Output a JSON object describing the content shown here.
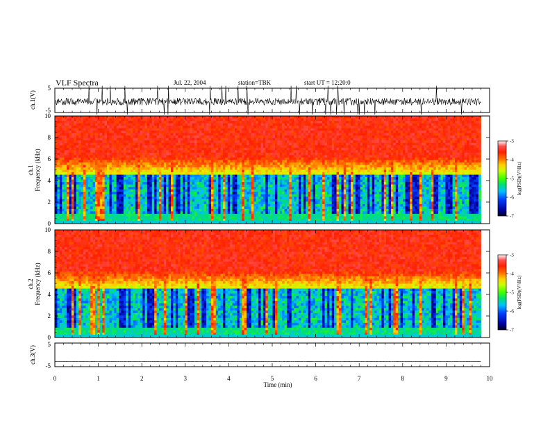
{
  "chart_data": {
    "type": "heatmap",
    "title": "VLF Spectra",
    "date": "Jul. 22, 2004",
    "station": "station=TBK",
    "start_ut": "start UT =  12:20:0",
    "xlabel": "Time (min)",
    "xlim": [
      0,
      10
    ],
    "x_ticks": [
      "0",
      "1",
      "2",
      "3",
      "4",
      "5",
      "6",
      "7",
      "8",
      "9",
      "10"
    ],
    "data_end_min": 9.8,
    "panels": [
      {
        "id": "ch1-waveform",
        "type": "line",
        "ylabel": "ch.1(V)",
        "ylim": [
          -5,
          5
        ],
        "y_ticks": [
          "5",
          "-5"
        ],
        "baseline_v": -0.5,
        "noise_amplitude_v": 1.5
      },
      {
        "id": "ch1-spectrogram",
        "type": "heatmap",
        "ylabel_1": "ch.1",
        "ylabel_2": "Frequency (kHz)",
        "ylim": [
          0,
          10
        ],
        "y_ticks": [
          "0",
          "2",
          "4",
          "6",
          "8",
          "10"
        ],
        "colorbar": {
          "label": "log(PSD)(V²/Hz)",
          "range": [
            -7,
            -3
          ],
          "ticks": [
            "-3",
            "-4",
            "-5",
            "-6",
            "-7"
          ]
        }
      },
      {
        "id": "ch2-spectrogram",
        "type": "heatmap",
        "ylabel_1": "ch.2",
        "ylabel_2": "Frequency (kHz)",
        "ylim": [
          0,
          10
        ],
        "y_ticks": [
          "0",
          "2",
          "4",
          "6",
          "8",
          "10"
        ],
        "colorbar": {
          "label": "log(PSD)(V²/Hz)",
          "range": [
            -7,
            -3
          ],
          "ticks": [
            "-3",
            "-4",
            "-5",
            "-6",
            "-7"
          ]
        }
      },
      {
        "id": "ch3-waveform",
        "type": "line",
        "ylabel": "ch.3(V)",
        "ylim": [
          -5,
          5
        ],
        "y_ticks": [
          "5",
          "-5"
        ],
        "baseline_v": -2.8,
        "noise_amplitude_v": 0.1
      }
    ]
  }
}
